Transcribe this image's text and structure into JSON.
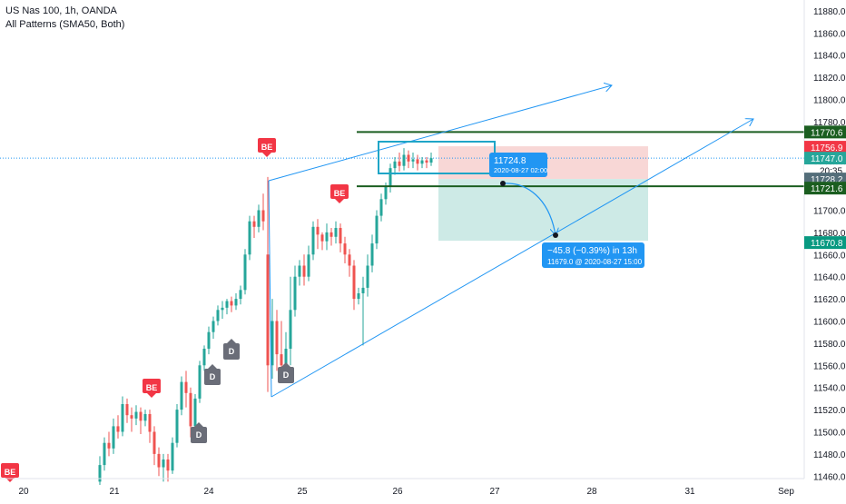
{
  "header": {
    "symbol_line": "US Nas 100, 1h, OANDA",
    "indicator_line": "All Patterns (SMA50, Both)"
  },
  "colors": {
    "up": "#26a69a",
    "down": "#ef5350",
    "line": "#2196f3",
    "level": "#1b5e20",
    "stop_zone": "#f8d7d6",
    "target_zone": "#cdeae6",
    "label_blue": "#2196f3",
    "price_grey": "#546e7a"
  },
  "chart_data": {
    "type": "candlestick",
    "title": "US Nas 100, 1h, OANDA",
    "ylim": [
      11455,
      11895
    ],
    "y_ticks": [
      11460,
      11480,
      11500,
      11520,
      11540,
      11560,
      11580,
      11600,
      11620,
      11640,
      11660,
      11680,
      11700,
      11720,
      11740,
      11760,
      11780,
      11800,
      11820,
      11840,
      11860,
      11880
    ],
    "x_ticks": [
      "20",
      "21",
      "24",
      "25",
      "26",
      "27",
      "28",
      "31",
      "Sep"
    ],
    "price_labels": [
      {
        "text": "11770.6",
        "kind": "level"
      },
      {
        "text": "11756.9",
        "kind": "stop"
      },
      {
        "text": "11747.0",
        "kind": "last"
      },
      {
        "text": "20:35",
        "kind": "countdown"
      },
      {
        "text": "11728.2",
        "kind": "entry"
      },
      {
        "text": "11721.6",
        "kind": "level"
      },
      {
        "text": "11670.8",
        "kind": "target"
      }
    ],
    "horizontal_levels": [
      11770.6,
      11721.6
    ],
    "position": {
      "stop": 11756.9,
      "entry": 11728.2,
      "target": 11670.8
    },
    "last_price": 11747.0,
    "pattern_badges": [
      {
        "text": "BE",
        "kind": "bearish"
      },
      {
        "text": "BE",
        "kind": "bearish"
      },
      {
        "text": "BE",
        "kind": "bearish"
      },
      {
        "text": "BE",
        "kind": "bearish"
      },
      {
        "text": "D",
        "kind": "pattern"
      },
      {
        "text": "D",
        "kind": "pattern"
      },
      {
        "text": "D",
        "kind": "pattern"
      },
      {
        "text": "D",
        "kind": "pattern"
      }
    ],
    "annotation_price": {
      "value": "11724.8",
      "date": "2020-08-27 02:00"
    },
    "annotation_target": {
      "change": "−45.8 (−0.39%) in 13h",
      "detail": "11679.0 @ 2020-08-27  15:00"
    }
  }
}
